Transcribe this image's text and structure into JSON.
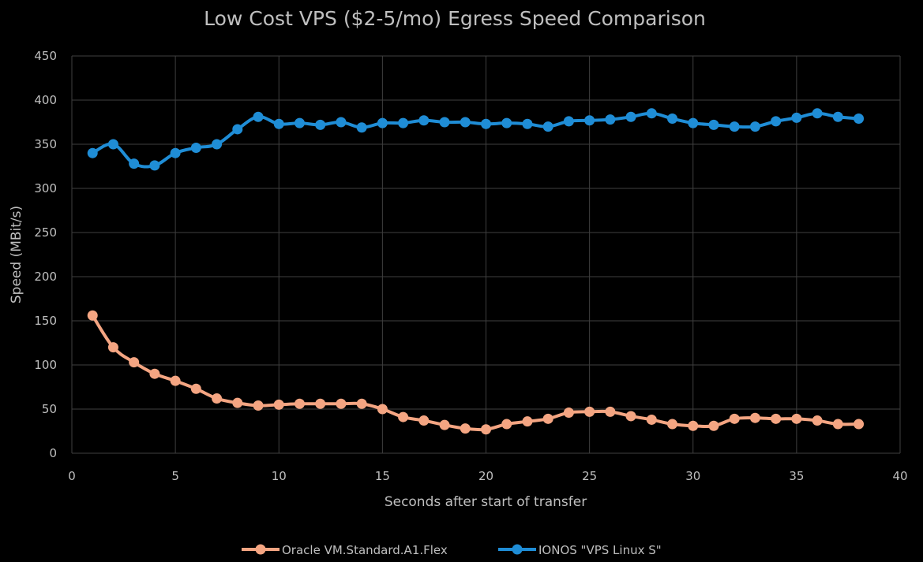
{
  "chart_data": {
    "type": "line",
    "title": "Low Cost VPS ($2-5/mo) Egress Speed Comparison",
    "xlabel": "Seconds after start of transfer",
    "ylabel": "Speed (MBit/s)",
    "xlim": [
      0,
      40
    ],
    "ylim": [
      0,
      450
    ],
    "xticks": [
      0,
      5,
      10,
      15,
      20,
      25,
      30,
      35,
      40
    ],
    "yticks": [
      0,
      50,
      100,
      150,
      200,
      250,
      300,
      350,
      400,
      450
    ],
    "grid": true,
    "legend_position": "bottom",
    "x": [
      1,
      2,
      3,
      4,
      5,
      6,
      7,
      8,
      9,
      10,
      11,
      12,
      13,
      14,
      15,
      16,
      17,
      18,
      19,
      20,
      21,
      22,
      23,
      24,
      25,
      26,
      27,
      28,
      29,
      30,
      31,
      32,
      33,
      34,
      35,
      36,
      37,
      38
    ],
    "series": [
      {
        "name": "Oracle VM.Standard.A1.Flex",
        "color": "#f4a582",
        "values": [
          156,
          120,
          103,
          90,
          82,
          73,
          62,
          57,
          54,
          55,
          56,
          56,
          56,
          56,
          50,
          41,
          37,
          32,
          28,
          27,
          33,
          36,
          39,
          46,
          47,
          47,
          42,
          38,
          33,
          31,
          31,
          39,
          40,
          39,
          39,
          37,
          33,
          33
        ]
      },
      {
        "name": "IONOS \"VPS Linux S\"",
        "color": "#1f8dd6",
        "values": [
          340,
          350,
          328,
          326,
          340,
          346,
          350,
          367,
          381,
          373,
          374,
          372,
          375,
          369,
          374,
          374,
          377,
          375,
          375,
          373,
          374,
          373,
          370,
          376,
          377,
          378,
          381,
          385,
          379,
          374,
          372,
          370,
          370,
          376,
          380,
          385,
          381,
          379
        ]
      }
    ]
  }
}
